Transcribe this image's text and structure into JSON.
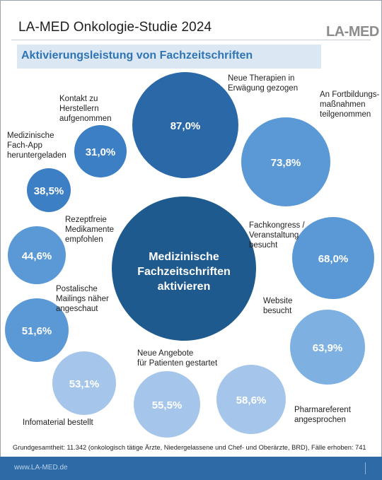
{
  "header": {
    "title": "LA-MED Onkologie-Studie 2024",
    "logo": "LA-MED",
    "subtitle": "Aktivierungsleistung von Fachzeitschriften"
  },
  "chart_data": {
    "type": "bubble",
    "center_label": "Medizinische Fachzeitschriften aktivieren",
    "unit": "%",
    "items": [
      {
        "label": "Neue Therapien in Erwägung gezogen",
        "value": 87.0,
        "display": "87,0%"
      },
      {
        "label": "An Fortbildungs-maßnahmen teilgenommen",
        "value": 73.8,
        "display": "73,8%"
      },
      {
        "label": "Fachkongress / Veranstaltung besucht",
        "value": 68.0,
        "display": "68,0%"
      },
      {
        "label": "Website besucht",
        "value": 63.9,
        "display": "63,9%"
      },
      {
        "label": "Pharmareferent angesprochen",
        "value": 58.6,
        "display": "58,6%"
      },
      {
        "label": "Neue Angebote für Patienten gestartet",
        "value": 55.5,
        "display": "55,5%"
      },
      {
        "label": "Infomaterial bestellt",
        "value": 53.1,
        "display": "53,1%"
      },
      {
        "label": "Postalische Mailings näher angeschaut",
        "value": 51.6,
        "display": "51,6%"
      },
      {
        "label": "Rezeptfreie Medikamente empfohlen",
        "value": 44.6,
        "display": "44,6%"
      },
      {
        "label": "Medizinische Fach-App heruntergeladen",
        "value": 38.5,
        "display": "38,5%"
      },
      {
        "label": "Kontakt zu Herstellern aufgenommen",
        "value": 31.0,
        "display": "31,0%"
      }
    ],
    "colors": {
      "center": "#1f5a8f",
      "dark": "#2a68a8",
      "mid": "#3c7fc4",
      "light": "#5b99d6",
      "lighter": "#7eb0e1",
      "lightest": "#a5c6ea"
    }
  },
  "footnote": "Grundgesamtheit: 11.342 (onkologisch tätige Ärzte,  Niedergelassene und Chef- und Oberärzte, BRD), Fälle erhoben: 741",
  "footer": {
    "url": "www.LA-MED.de"
  }
}
